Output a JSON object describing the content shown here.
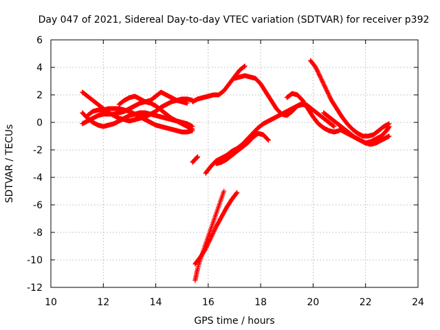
{
  "chart_data": {
    "type": "scatter",
    "title": "Day 047 of 2021, Sidereal Day-to-day VTEC variation (SDTVAR) for receiver p392",
    "xlabel": "GPS time / hours",
    "ylabel": "SDTVAR / TECUs",
    "xlim": [
      10,
      24
    ],
    "ylim": [
      -12,
      6
    ],
    "xticks": [
      10,
      12,
      14,
      16,
      18,
      20,
      22,
      24
    ],
    "yticks": [
      -12,
      -10,
      -8,
      -6,
      -4,
      -2,
      0,
      2,
      4,
      6
    ],
    "grid": true,
    "marker": "plus",
    "color": "#ff0000",
    "series": [
      {
        "x": [
          11.2,
          11.4,
          11.6,
          11.8,
          12.0,
          12.2,
          12.4,
          12.6,
          12.8,
          13.0,
          13.2,
          13.4,
          13.6,
          13.8,
          14.0,
          14.2,
          14.4,
          14.6,
          14.8,
          15.0,
          15.2,
          15.4
        ],
        "y": [
          -0.1,
          0.1,
          0.3,
          0.5,
          0.6,
          0.6,
          0.6,
          0.7,
          0.8,
          1.0,
          1.2,
          1.4,
          1.5,
          1.4,
          1.2,
          0.9,
          0.6,
          0.3,
          0.1,
          -0.1,
          -0.3,
          -0.5
        ]
      },
      {
        "x": [
          11.2,
          11.4,
          11.6,
          11.8,
          12.0,
          12.2,
          12.4,
          12.6,
          12.8,
          13.0,
          13.2,
          13.4,
          13.6,
          13.8,
          14.0,
          14.2,
          14.4,
          14.6,
          14.8,
          15.0,
          15.2,
          15.4
        ],
        "y": [
          2.2,
          1.9,
          1.6,
          1.3,
          1.0,
          0.7,
          0.5,
          0.3,
          0.2,
          0.1,
          0.2,
          0.3,
          0.4,
          0.6,
          0.8,
          1.1,
          1.3,
          1.5,
          1.6,
          1.7,
          1.7,
          1.6
        ]
      },
      {
        "x": [
          11.2,
          11.4,
          11.6,
          11.8,
          12.0,
          12.2,
          12.4,
          12.6,
          12.8,
          13.0,
          13.2,
          13.4,
          13.6,
          13.8,
          14.0,
          14.2,
          14.4,
          14.6,
          14.8,
          15.0,
          15.2,
          15.4
        ],
        "y": [
          0.7,
          0.3,
          0.0,
          -0.2,
          -0.3,
          -0.2,
          -0.1,
          0.1,
          0.3,
          0.5,
          0.6,
          0.7,
          0.7,
          0.6,
          0.5,
          0.4,
          0.3,
          0.2,
          0.1,
          0.0,
          -0.1,
          -0.3
        ]
      },
      {
        "x": [
          11.4,
          11.6,
          11.8,
          12.0,
          12.2,
          12.4,
          12.6,
          12.8,
          13.0,
          13.2,
          13.4,
          13.6,
          13.8,
          14.0,
          14.2,
          14.4,
          14.6,
          14.8,
          15.0,
          15.2,
          15.4
        ],
        "y": [
          0.5,
          0.8,
          0.9,
          0.9,
          1.0,
          1.0,
          1.0,
          0.9,
          0.8,
          0.6,
          0.4,
          0.2,
          0.0,
          -0.2,
          -0.3,
          -0.4,
          -0.5,
          -0.6,
          -0.7,
          -0.7,
          -0.6
        ]
      },
      {
        "x": [
          12.6,
          12.8,
          13.0,
          13.2,
          13.4,
          13.6,
          13.8,
          14.0,
          14.2,
          14.4,
          14.6,
          14.8,
          15.0,
          15.2
        ],
        "y": [
          1.3,
          1.6,
          1.8,
          1.9,
          1.7,
          1.5,
          1.6,
          1.9,
          2.2,
          2.0,
          1.8,
          1.6,
          1.5,
          1.4
        ]
      },
      {
        "x": [
          15.4,
          15.6,
          15.8,
          16.0,
          16.2,
          16.4,
          16.6,
          16.8,
          17.0,
          17.2,
          17.4
        ],
        "y": [
          1.5,
          1.7,
          1.8,
          1.9,
          2.0,
          2.0,
          2.3,
          2.8,
          3.3,
          3.8,
          4.1
        ]
      },
      {
        "x": [
          17.0,
          17.2,
          17.4,
          17.6,
          17.8,
          18.0,
          18.2,
          18.4,
          18.6,
          18.8,
          19.0,
          19.2,
          19.4,
          19.6,
          19.8,
          20.0,
          20.2,
          20.4,
          20.6,
          20.8
        ],
        "y": [
          3.2,
          3.3,
          3.4,
          3.3,
          3.2,
          2.8,
          2.2,
          1.6,
          1.0,
          0.6,
          0.5,
          0.8,
          1.2,
          1.3,
          1.2,
          0.9,
          0.6,
          0.3,
          0.0,
          -0.3
        ]
      },
      {
        "x": [
          19.0,
          19.2,
          19.4,
          19.6,
          19.8,
          20.0,
          20.2,
          20.4,
          20.6,
          20.8,
          21.0
        ],
        "y": [
          1.8,
          2.1,
          2.0,
          1.6,
          1.0,
          0.4,
          -0.1,
          -0.4,
          -0.6,
          -0.7,
          -0.6
        ]
      },
      {
        "x": [
          19.9,
          20.1,
          20.3,
          20.5,
          20.7,
          20.9,
          21.1,
          21.3,
          21.5,
          21.7,
          21.9,
          22.1,
          22.3,
          22.5,
          22.7,
          22.9
        ],
        "y": [
          4.5,
          4.0,
          3.2,
          2.4,
          1.6,
          1.0,
          0.4,
          -0.1,
          -0.5,
          -0.8,
          -1.0,
          -1.0,
          -0.9,
          -0.6,
          -0.3,
          -0.1
        ]
      },
      {
        "x": [
          20.4,
          20.6,
          20.8,
          21.0,
          21.2,
          21.4,
          21.6,
          21.8,
          22.0,
          22.2,
          22.4,
          22.6,
          22.8,
          22.9
        ],
        "y": [
          0.7,
          0.4,
          0.1,
          -0.2,
          -0.5,
          -0.8,
          -1.1,
          -1.3,
          -1.5,
          -1.6,
          -1.5,
          -1.3,
          -1.1,
          -1.0
        ]
      },
      {
        "x": [
          21.0,
          21.2,
          21.4,
          21.6,
          21.8,
          22.0,
          22.2,
          22.4,
          22.6,
          22.8,
          22.9
        ],
        "y": [
          -0.5,
          -0.7,
          -0.9,
          -1.1,
          -1.3,
          -1.5,
          -1.4,
          -1.2,
          -1.0,
          -0.6,
          -0.3
        ]
      },
      {
        "x": [
          15.9,
          16.1,
          16.3,
          16.5,
          16.7,
          16.9,
          17.1,
          17.3,
          17.5,
          17.7,
          17.9,
          18.1,
          18.3,
          18.5,
          18.7,
          18.9,
          19.1,
          19.3,
          19.5,
          19.7
        ],
        "y": [
          -3.7,
          -3.2,
          -2.8,
          -2.6,
          -2.4,
          -2.1,
          -1.9,
          -1.6,
          -1.2,
          -0.8,
          -0.4,
          -0.1,
          0.1,
          0.3,
          0.5,
          0.7,
          0.9,
          1.1,
          1.3,
          1.4
        ]
      },
      {
        "x": [
          16.3,
          16.5,
          16.7,
          16.9,
          17.1,
          17.3,
          17.5,
          17.7,
          17.9,
          18.1,
          18.3
        ],
        "y": [
          -3.0,
          -2.9,
          -2.7,
          -2.4,
          -2.1,
          -1.8,
          -1.5,
          -1.1,
          -0.8,
          -0.9,
          -1.3
        ]
      },
      {
        "x": [
          15.4,
          15.5,
          15.6
        ],
        "y": [
          -2.9,
          -2.7,
          -2.5
        ]
      },
      {
        "x": [
          15.5,
          15.6,
          15.8,
          16.0,
          16.2,
          16.4,
          16.6
        ],
        "y": [
          -11.5,
          -10.6,
          -9.4,
          -8.3,
          -7.2,
          -6.1,
          -5.0
        ]
      },
      {
        "x": [
          15.5,
          15.7,
          15.9,
          16.1,
          16.3,
          16.5,
          16.7,
          16.9,
          17.1
        ],
        "y": [
          -10.3,
          -9.8,
          -9.2,
          -8.4,
          -7.6,
          -6.9,
          -6.2,
          -5.6,
          -5.1
        ]
      }
    ]
  }
}
